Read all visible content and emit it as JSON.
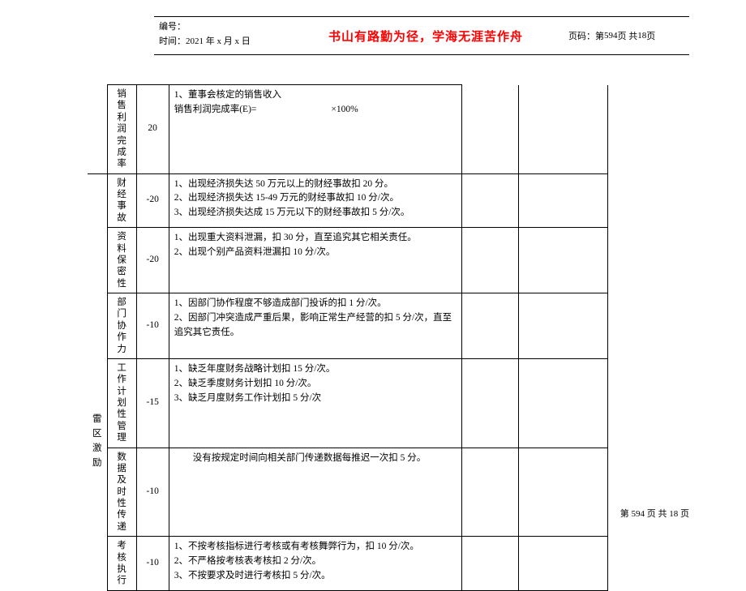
{
  "header": {
    "serial_label": "编号：",
    "time_label": "时间：",
    "time_value": "2021 年 x 月 x 日",
    "motto": "书山有路勤为径，学海无涯苦作舟",
    "page_label": "页码：",
    "page_current_label": "第",
    "page_current": "594",
    "page_mid": "页  共",
    "page_total": "18",
    "page_suffix": "页"
  },
  "section_labels": {
    "leiqu": "雷区激励"
  },
  "rows": [
    {
      "name": "销售利润完成率",
      "score": "20",
      "desc": "1、董事会核定的销售收入\n销售利润完成率(E)=        ×100%"
    },
    {
      "name": "财经事故",
      "score": "-20",
      "desc": "1、出现经济损失达 50 万元以上的财经事故扣 20 分。\n2、出现经济损失达 15-49 万元的财经事故扣 10 分/次。\n3、出现经济损失达成 15 万元以下的财经事故扣 5 分/次。"
    },
    {
      "name": "资料保密性",
      "score": "-20",
      "desc": "1、出现重大资料泄漏，扣 30 分，直至追究其它相关责任。\n2、出现个别产品资料泄漏扣 10 分/次。"
    },
    {
      "name": "部门协作力",
      "score": "-10",
      "desc": "1、因部门协作程度不够造成部门投诉的扣 1 分/次。\n2、因部门冲突造成严重后果，影响正常生产经营的扣 5 分/次，直至追究其它责任。"
    },
    {
      "name": "工作计划性管理",
      "score": "-15",
      "desc": "1、缺乏年度财务战略计划扣 15 分/次。\n2、缺乏季度财务计划扣 10 分/次。\n3、缺乏月度财务工作计划扣 5 分/次"
    },
    {
      "name": "数据及时性传递",
      "score": "-10",
      "desc": "  没有按规定时间向相关部门传递数据每推迟一次扣 5 分。"
    },
    {
      "name": "考核执行",
      "score": "-10",
      "desc": "1、不按考核指标进行考核或有考核舞弊行为，扣 10 分/次。\n2、不严格按考核表考核扣 2 分/次。\n3、不按要求及时进行考核扣 5 分/次。"
    }
  ],
  "footer": {
    "text_prefix": "第 ",
    "current": "594",
    "text_mid": " 页 共 ",
    "total": "18",
    "text_suffix": " 页"
  }
}
